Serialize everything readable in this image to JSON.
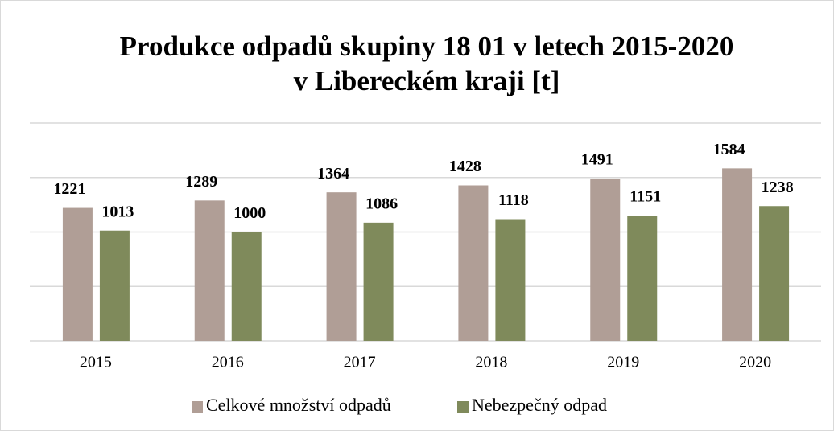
{
  "chart_data": {
    "type": "bar",
    "title": [
      "Produkce odpadů skupiny 18 01 v letech 2015-2020",
      "v Libereckém kraji [t]"
    ],
    "categories": [
      "2015",
      "2016",
      "2017",
      "2018",
      "2019",
      "2020"
    ],
    "series": [
      {
        "name": "Celkové množství odpadů",
        "color": "#b09e96",
        "values": [
          1221,
          1289,
          1364,
          1428,
          1491,
          1584
        ]
      },
      {
        "name": "Nebezpečný odpad",
        "color": "#7f8a5b",
        "values": [
          1013,
          1000,
          1086,
          1118,
          1151,
          1238
        ]
      }
    ],
    "ylim": [
      0,
      2000
    ],
    "yticks": [
      0,
      500,
      1000,
      1500,
      2000
    ],
    "grid": true,
    "legend": "bottom"
  }
}
